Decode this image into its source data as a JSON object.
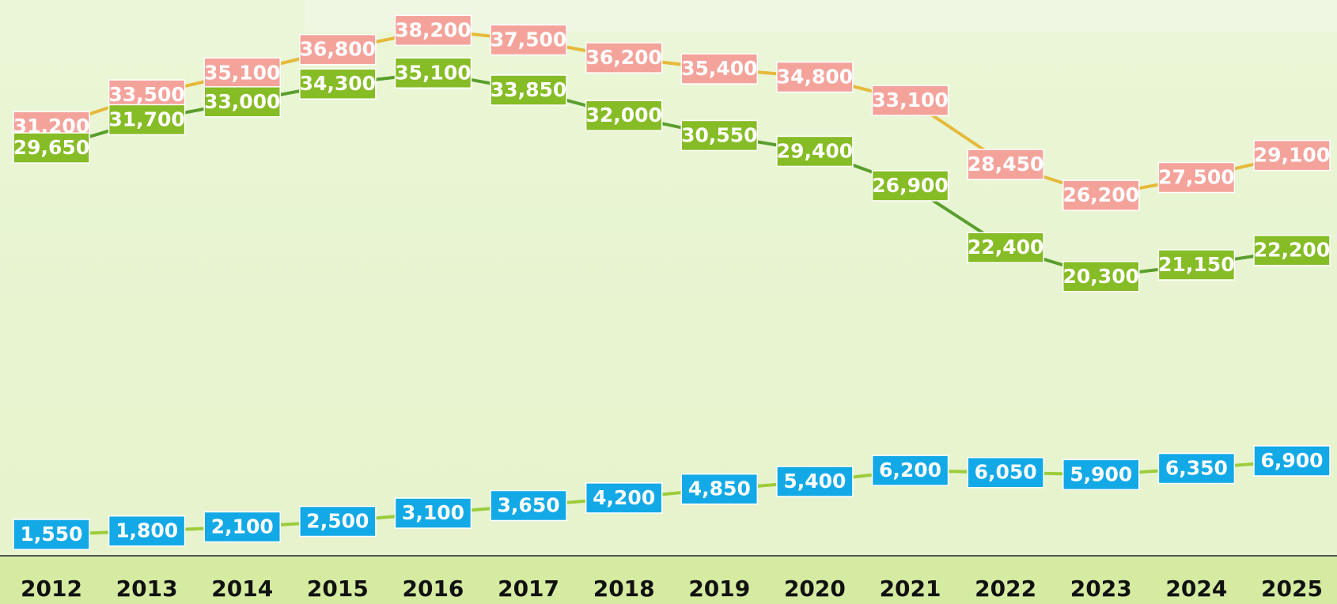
{
  "chart_data": {
    "type": "line",
    "categories": [
      "2012",
      "2013",
      "2014",
      "2015",
      "2016",
      "2017",
      "2018",
      "2019",
      "2020",
      "2021",
      "2022",
      "2023",
      "2024",
      "2025"
    ],
    "series": [
      {
        "color": "#f4a39b",
        "line_color": "#e6b93a",
        "values": [
          31200,
          33500,
          35100,
          36800,
          38200,
          37500,
          36200,
          35400,
          34800,
          33100,
          28450,
          26200,
          27500,
          29100
        ],
        "value_labels": [
          "31,200",
          "33,500",
          "35,100",
          "36,800",
          "38,200",
          "37,500",
          "36,200",
          "35,400",
          "34,800",
          "33,100",
          "28,450",
          "26,200",
          "27,500",
          "29,100"
        ]
      },
      {
        "color": "#86bc25",
        "line_color": "#5a9e2e",
        "values": [
          29650,
          31700,
          33000,
          34300,
          35100,
          33850,
          32000,
          30550,
          29400,
          26900,
          22400,
          20300,
          21150,
          22200
        ],
        "value_labels": [
          "29,650",
          "31,700",
          "33,000",
          "34,300",
          "35,100",
          "33,850",
          "32,000",
          "30,550",
          "29,400",
          "26,900",
          "22,400",
          "20,300",
          "21,150",
          "22,200"
        ]
      },
      {
        "color": "#12a9e6",
        "line_color": "#9ccc3c",
        "values": [
          1550,
          1800,
          2100,
          2500,
          3100,
          3650,
          4200,
          4850,
          5400,
          6200,
          6050,
          5900,
          6350,
          6900
        ],
        "value_labels": [
          "1,550",
          "1,800",
          "2,100",
          "2,500",
          "3,100",
          "3,650",
          "4,200",
          "4,850",
          "5,400",
          "6,200",
          "6,050",
          "5,900",
          "6,350",
          "6,900"
        ]
      }
    ],
    "ylim": [
      0,
      40000
    ]
  }
}
